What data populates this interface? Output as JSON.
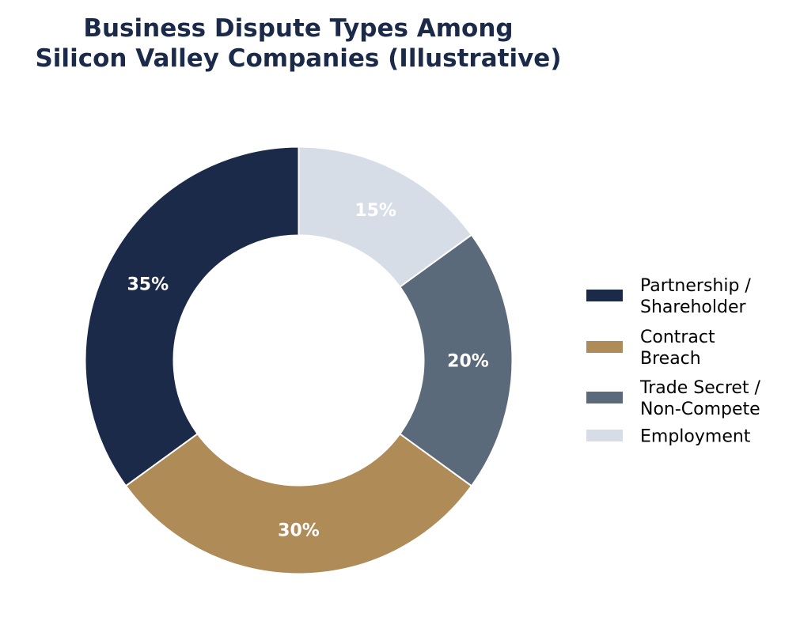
{
  "chart_data": {
    "type": "pie",
    "title_lines": [
      "Business Dispute Types Among",
      "Silicon Valley Companies (Illustrative)"
    ],
    "categories": [
      "Partnership / Shareholder",
      "Contract Breach",
      "Trade Secret / Non-Compete",
      "Employment"
    ],
    "values": [
      35,
      30,
      20,
      15
    ],
    "labels": [
      "35%",
      "30%",
      "20%",
      "15%"
    ],
    "legend_lines": [
      [
        "Partnership /",
        "Shareholder"
      ],
      [
        "Contract",
        "Breach"
      ],
      [
        "Trade Secret /",
        "Non-Compete"
      ],
      [
        "Employment"
      ]
    ],
    "colors": [
      "#1c2a4a",
      "#ae8b57",
      "#5b6a7b",
      "#d7dde7"
    ],
    "title_color": "#1c2a4a",
    "label_color": "#ffffff",
    "donut": true,
    "legend_position": "right",
    "start": "top",
    "direction": "counterclockwise"
  }
}
